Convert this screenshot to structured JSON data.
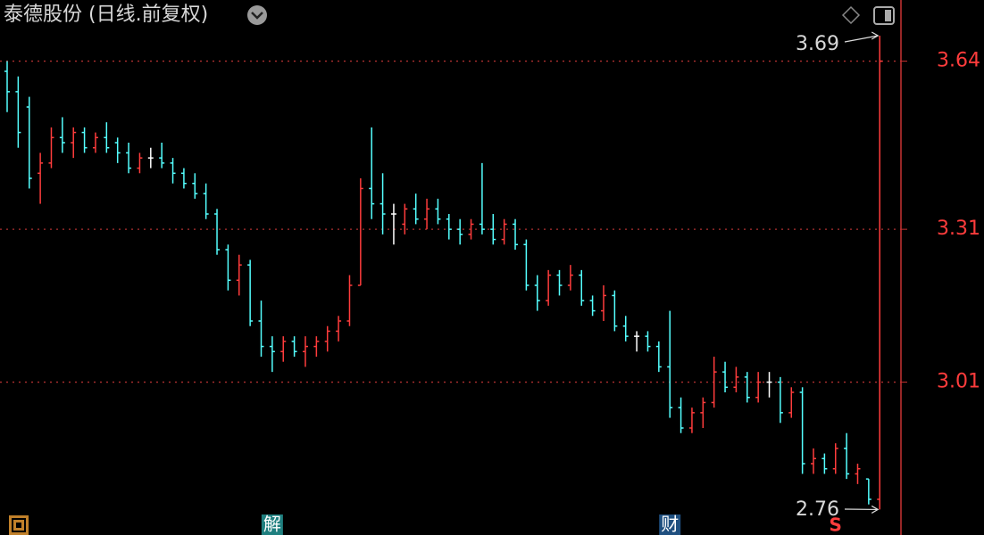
{
  "chart_data": {
    "type": "ohlc",
    "title": "泰德股份 (日线.前复权)",
    "ylim": [
      2.71,
      3.76
    ],
    "yticks": [
      3.01,
      3.31,
      3.64
    ],
    "grid": true,
    "up_color": "#ff3c3c",
    "down_color": "#54ffff",
    "flat_color": "#ffffff",
    "bars": [
      [
        3.62,
        3.64,
        3.54,
        3.58
      ],
      [
        3.58,
        3.61,
        3.47,
        3.5
      ],
      [
        3.55,
        3.57,
        3.39,
        3.41
      ],
      [
        3.42,
        3.46,
        3.36,
        3.44
      ],
      [
        3.44,
        3.51,
        3.43,
        3.49
      ],
      [
        3.49,
        3.53,
        3.46,
        3.48
      ],
      [
        3.48,
        3.51,
        3.45,
        3.5
      ],
      [
        3.5,
        3.51,
        3.46,
        3.47
      ],
      [
        3.47,
        3.5,
        3.46,
        3.49
      ],
      [
        3.49,
        3.52,
        3.46,
        3.47
      ],
      [
        3.48,
        3.49,
        3.44,
        3.46
      ],
      [
        3.46,
        3.48,
        3.42,
        3.43
      ],
      [
        3.43,
        3.46,
        3.42,
        3.45
      ],
      [
        3.45,
        3.47,
        3.43,
        3.45
      ],
      [
        3.45,
        3.48,
        3.43,
        3.44
      ],
      [
        3.44,
        3.45,
        3.4,
        3.42
      ],
      [
        3.42,
        3.43,
        3.39,
        3.4
      ],
      [
        3.4,
        3.42,
        3.37,
        3.38
      ],
      [
        3.38,
        3.4,
        3.33,
        3.34
      ],
      [
        3.34,
        3.35,
        3.26,
        3.27
      ],
      [
        3.27,
        3.28,
        3.19,
        3.21
      ],
      [
        3.21,
        3.26,
        3.18,
        3.24
      ],
      [
        3.24,
        3.25,
        3.12,
        3.13
      ],
      [
        3.13,
        3.17,
        3.06,
        3.08
      ],
      [
        3.08,
        3.1,
        3.03,
        3.07
      ],
      [
        3.07,
        3.1,
        3.05,
        3.09
      ],
      [
        3.09,
        3.1,
        3.06,
        3.07
      ],
      [
        3.07,
        3.1,
        3.04,
        3.08
      ],
      [
        3.08,
        3.1,
        3.06,
        3.09
      ],
      [
        3.09,
        3.12,
        3.07,
        3.11
      ],
      [
        3.11,
        3.14,
        3.09,
        3.13
      ],
      [
        3.13,
        3.22,
        3.12,
        3.2
      ],
      [
        3.2,
        3.41,
        3.2,
        3.39
      ],
      [
        3.39,
        3.51,
        3.33,
        3.36
      ],
      [
        3.36,
        3.42,
        3.3,
        3.34
      ],
      [
        3.34,
        3.36,
        3.28,
        3.34
      ],
      [
        3.32,
        3.36,
        3.3,
        3.35
      ],
      [
        3.35,
        3.38,
        3.32,
        3.33
      ],
      [
        3.33,
        3.37,
        3.31,
        3.35
      ],
      [
        3.35,
        3.37,
        3.32,
        3.33
      ],
      [
        3.33,
        3.34,
        3.29,
        3.31
      ],
      [
        3.31,
        3.33,
        3.28,
        3.3
      ],
      [
        3.3,
        3.33,
        3.29,
        3.32
      ],
      [
        3.32,
        3.44,
        3.3,
        3.31
      ],
      [
        3.31,
        3.34,
        3.28,
        3.29
      ],
      [
        3.29,
        3.33,
        3.28,
        3.32
      ],
      [
        3.32,
        3.33,
        3.27,
        3.28
      ],
      [
        3.28,
        3.29,
        3.19,
        3.2
      ],
      [
        3.2,
        3.22,
        3.15,
        3.17
      ],
      [
        3.17,
        3.23,
        3.16,
        3.22
      ],
      [
        3.22,
        3.23,
        3.18,
        3.2
      ],
      [
        3.2,
        3.24,
        3.19,
        3.22
      ],
      [
        3.22,
        3.23,
        3.16,
        3.17
      ],
      [
        3.17,
        3.18,
        3.14,
        3.15
      ],
      [
        3.15,
        3.2,
        3.13,
        3.18
      ],
      [
        3.18,
        3.19,
        3.11,
        3.12
      ],
      [
        3.12,
        3.14,
        3.09,
        3.1
      ],
      [
        3.1,
        3.11,
        3.07,
        3.1
      ],
      [
        3.1,
        3.11,
        3.07,
        3.08
      ],
      [
        3.08,
        3.09,
        3.03,
        3.04
      ],
      [
        3.04,
        3.15,
        2.94,
        2.96
      ],
      [
        2.96,
        2.98,
        2.91,
        2.92
      ],
      [
        2.92,
        2.96,
        2.91,
        2.95
      ],
      [
        2.95,
        2.98,
        2.92,
        2.97
      ],
      [
        2.97,
        3.06,
        2.96,
        3.03
      ],
      [
        3.03,
        3.05,
        2.99,
        3.0
      ],
      [
        3.0,
        3.04,
        2.99,
        3.02
      ],
      [
        3.02,
        3.03,
        2.97,
        2.98
      ],
      [
        2.98,
        3.03,
        2.97,
        3.01
      ],
      [
        3.01,
        3.03,
        2.98,
        3.01
      ],
      [
        3.01,
        3.02,
        2.93,
        2.95
      ],
      [
        2.95,
        3.0,
        2.94,
        2.99
      ],
      [
        2.99,
        3.0,
        2.83,
        2.85
      ],
      [
        2.85,
        2.88,
        2.83,
        2.86
      ],
      [
        2.86,
        2.87,
        2.83,
        2.84
      ],
      [
        2.84,
        2.89,
        2.83,
        2.88
      ],
      [
        2.88,
        2.91,
        2.82,
        2.83
      ],
      [
        2.83,
        2.85,
        2.81,
        2.84
      ],
      [
        2.82,
        2.82,
        2.77,
        2.78
      ],
      [
        2.78,
        3.69,
        2.76,
        3.64
      ]
    ],
    "high_annotation": {
      "value": 3.69,
      "label": "3.69"
    },
    "low_annotation": {
      "value": 2.76,
      "label": "2.76"
    },
    "events": [
      {
        "bar": 24,
        "label": "解"
      },
      {
        "bar": 60,
        "label": "财"
      },
      {
        "bar": 75,
        "label": "S"
      }
    ]
  }
}
